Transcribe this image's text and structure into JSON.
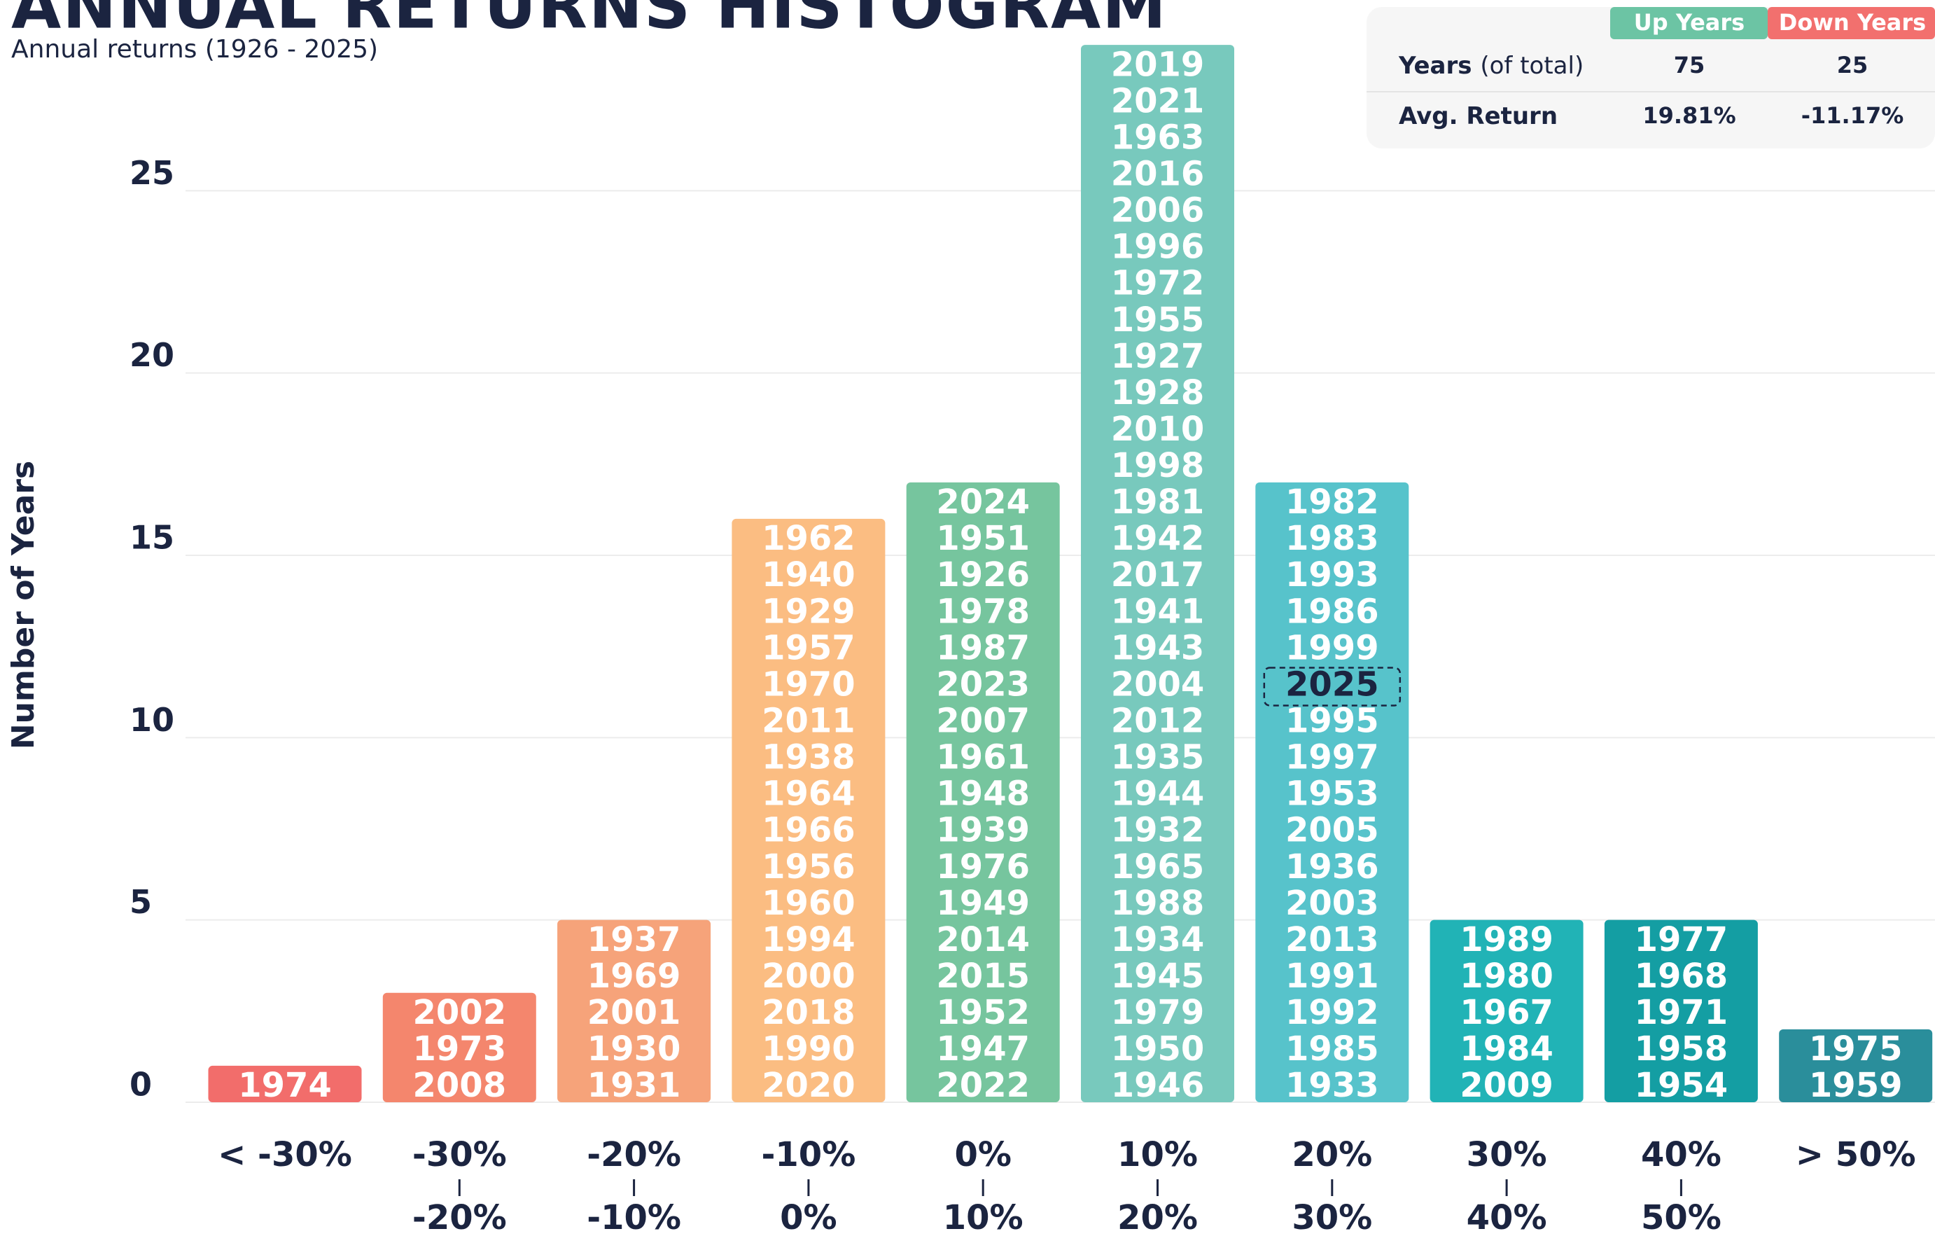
{
  "chart_data": {
    "type": "histogram",
    "title": "ANNUAL RETURNS HISTOGRAM",
    "subtitle": "Annual returns (1926 - 2025)",
    "y_label": "Number of Years",
    "categories": [
      [
        "< -30%"
      ],
      [
        "-30%",
        "-20%"
      ],
      [
        "-20%",
        "-10%"
      ],
      [
        "-10%",
        "0%"
      ],
      [
        "0%",
        "10%"
      ],
      [
        "10%",
        "20%"
      ],
      [
        "20%",
        "30%"
      ],
      [
        "30%",
        "40%"
      ],
      [
        "40%",
        "50%"
      ],
      [
        "> 50%"
      ]
    ],
    "values": [
      1,
      3,
      5,
      16,
      17,
      29,
      17,
      5,
      5,
      2
    ],
    "colors": [
      "#f26d6b",
      "#f4866d",
      "#f6a37a",
      "#fbbd82",
      "#76c59e",
      "#78c9bd",
      "#57c3cb",
      "#21b3b6",
      "#149ea3",
      "#2a8e9b"
    ],
    "years": [
      [
        "1974"
      ],
      [
        "2002",
        "1973",
        "2008"
      ],
      [
        "1937",
        "1969",
        "2001",
        "1930",
        "1931"
      ],
      [
        "1962",
        "1940",
        "1929",
        "1957",
        "1970",
        "2011",
        "1938",
        "1964",
        "1966",
        "1956",
        "1960",
        "1994",
        "2000",
        "2018",
        "1990",
        "2020"
      ],
      [
        "2024",
        "1951",
        "1926",
        "1978",
        "1987",
        "2023",
        "2007",
        "1961",
        "1948",
        "1939",
        "1976",
        "1949",
        "2014",
        "2015",
        "1952",
        "1947",
        "2022"
      ],
      [
        "2019",
        "2021",
        "1963",
        "2016",
        "2006",
        "1996",
        "1972",
        "1955",
        "1927",
        "1928",
        "2010",
        "1998",
        "1981",
        "1942",
        "2017",
        "1941",
        "1943",
        "2004",
        "2012",
        "1935",
        "1944",
        "1932",
        "1965",
        "1988",
        "1934",
        "1945",
        "1979",
        "1950",
        "1946"
      ],
      [
        "1982",
        "1983",
        "1993",
        "1986",
        "1999",
        "2025",
        "1995",
        "1997",
        "1953",
        "2005",
        "1936",
        "2003",
        "2013",
        "1991",
        "1992",
        "1985",
        "1933"
      ],
      [
        "1989",
        "1980",
        "1967",
        "1984",
        "2009"
      ],
      [
        "1977",
        "1968",
        "1971",
        "1958",
        "1954"
      ],
      [
        "1975",
        "1959"
      ]
    ],
    "highlight_year": "2025",
    "ylim": [
      0,
      30
    ],
    "yticks": [
      0,
      5,
      10,
      15,
      20,
      25
    ],
    "grid": true
  },
  "table": {
    "columns": [
      "Up Years",
      "Down Years"
    ],
    "column_colors": [
      "#6cc4a4",
      "#f2706e"
    ],
    "rows": [
      {
        "label": "Years",
        "note": "(of total)",
        "cells": [
          "75",
          "25"
        ]
      },
      {
        "label": "Avg. Return",
        "cells": [
          "19.81%",
          "-11.17%"
        ]
      }
    ]
  }
}
